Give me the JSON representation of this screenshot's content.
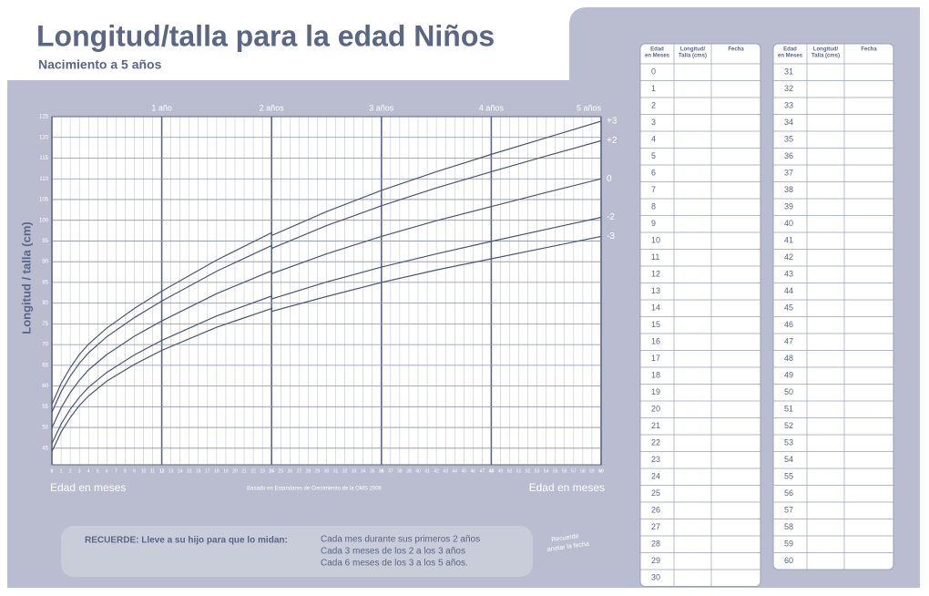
{
  "header": {
    "title": "Longitud/talla para la edad Niños",
    "subtitle": "Nacimiento a 5 años"
  },
  "chart_data": {
    "type": "line",
    "title": null,
    "x_label": "Edad en meses",
    "y_label": "Longitud / talla (cm)",
    "source": "Basado en Estandares de Crecimiento de la OMS 2006",
    "xlim": [
      0,
      60
    ],
    "ylim": [
      41,
      125
    ],
    "grid": true,
    "xticks": [
      0,
      1,
      2,
      3,
      4,
      5,
      6,
      7,
      8,
      9,
      10,
      11,
      12,
      13,
      14,
      15,
      16,
      17,
      18,
      19,
      20,
      21,
      22,
      23,
      24,
      25,
      26,
      27,
      28,
      29,
      30,
      31,
      32,
      33,
      34,
      35,
      36,
      37,
      38,
      39,
      40,
      41,
      42,
      43,
      44,
      45,
      46,
      47,
      48,
      49,
      50,
      51,
      52,
      53,
      54,
      55,
      56,
      57,
      58,
      59,
      60
    ],
    "yticks": [
      45,
      50,
      55,
      60,
      65,
      70,
      75,
      80,
      85,
      90,
      95,
      100,
      105,
      110,
      115,
      120,
      125
    ],
    "year_labels": [
      {
        "value": 12,
        "label": "1 año"
      },
      {
        "value": 24,
        "label": "2 años"
      },
      {
        "value": 36,
        "label": "3 años"
      },
      {
        "value": 48,
        "label": "4 años"
      },
      {
        "value": 60,
        "label": "5 años"
      }
    ],
    "x": [
      0,
      1,
      2,
      3,
      4,
      6,
      9,
      12,
      18,
      24,
      24,
      30,
      36,
      42,
      48,
      54,
      60
    ],
    "series": [
      {
        "name": "+3",
        "color": "#4a5577",
        "values": [
          55.6,
          60.6,
          64.4,
          67.6,
          70.1,
          74.0,
          78.7,
          82.9,
          90.4,
          97.0,
          96.3,
          102.1,
          107.2,
          111.7,
          115.9,
          119.9,
          123.9
        ]
      },
      {
        "name": "+2",
        "color": "#4a5577",
        "values": [
          53.7,
          58.6,
          62.4,
          65.5,
          68.0,
          71.9,
          76.5,
          80.5,
          87.7,
          93.9,
          93.2,
          98.7,
          103.5,
          107.8,
          111.7,
          115.5,
          119.2
        ]
      },
      {
        "name": "0",
        "color": "#4a5577",
        "values": [
          49.9,
          54.7,
          58.4,
          61.4,
          63.9,
          67.6,
          72.0,
          75.7,
          82.3,
          87.8,
          87.1,
          91.9,
          96.1,
          99.9,
          103.3,
          106.7,
          110.0
        ]
      },
      {
        "name": "-2",
        "color": "#4a5577",
        "values": [
          46.1,
          50.8,
          54.4,
          57.3,
          59.7,
          63.3,
          67.5,
          71.0,
          76.9,
          81.7,
          81.0,
          85.1,
          88.7,
          91.9,
          94.9,
          97.8,
          100.7
        ]
      },
      {
        "name": "-3",
        "color": "#4a5577",
        "values": [
          44.2,
          48.9,
          52.4,
          55.3,
          57.6,
          61.2,
          65.2,
          68.6,
          74.2,
          78.7,
          78.0,
          81.6,
          85.0,
          88.0,
          90.7,
          93.4,
          96.1
        ]
      }
    ]
  },
  "reminder": {
    "lead": "RECUERDE: Lleve a su hijo para que lo midan:",
    "lines": [
      "Cada mes durante sus primeros 2 años",
      "Cada 3 meses de los 2 a los 3 años",
      "Cada 6 meses de los 3 a los 5 años."
    ],
    "badge": [
      "Recuerde",
      "anotar la fecha"
    ]
  },
  "log_tables": [
    {
      "headers": [
        [
          "Edad",
          "en Meses"
        ],
        [
          "Longitud/",
          "Talla (cms)"
        ],
        [
          "Fecha"
        ]
      ],
      "ages": [
        0,
        1,
        2,
        3,
        4,
        5,
        6,
        7,
        8,
        9,
        10,
        11,
        12,
        13,
        14,
        15,
        16,
        17,
        18,
        19,
        20,
        21,
        22,
        23,
        24,
        25,
        26,
        27,
        28,
        29,
        30
      ]
    },
    {
      "headers": [
        [
          "Edad",
          "en Meses"
        ],
        [
          "Longitud/",
          "Talla (cms)"
        ],
        [
          "Fecha"
        ]
      ],
      "ages": [
        31,
        32,
        33,
        34,
        35,
        36,
        37,
        38,
        39,
        40,
        41,
        42,
        43,
        44,
        45,
        46,
        47,
        48,
        49,
        50,
        51,
        52,
        53,
        54,
        55,
        56,
        57,
        58,
        59,
        60
      ]
    }
  ]
}
